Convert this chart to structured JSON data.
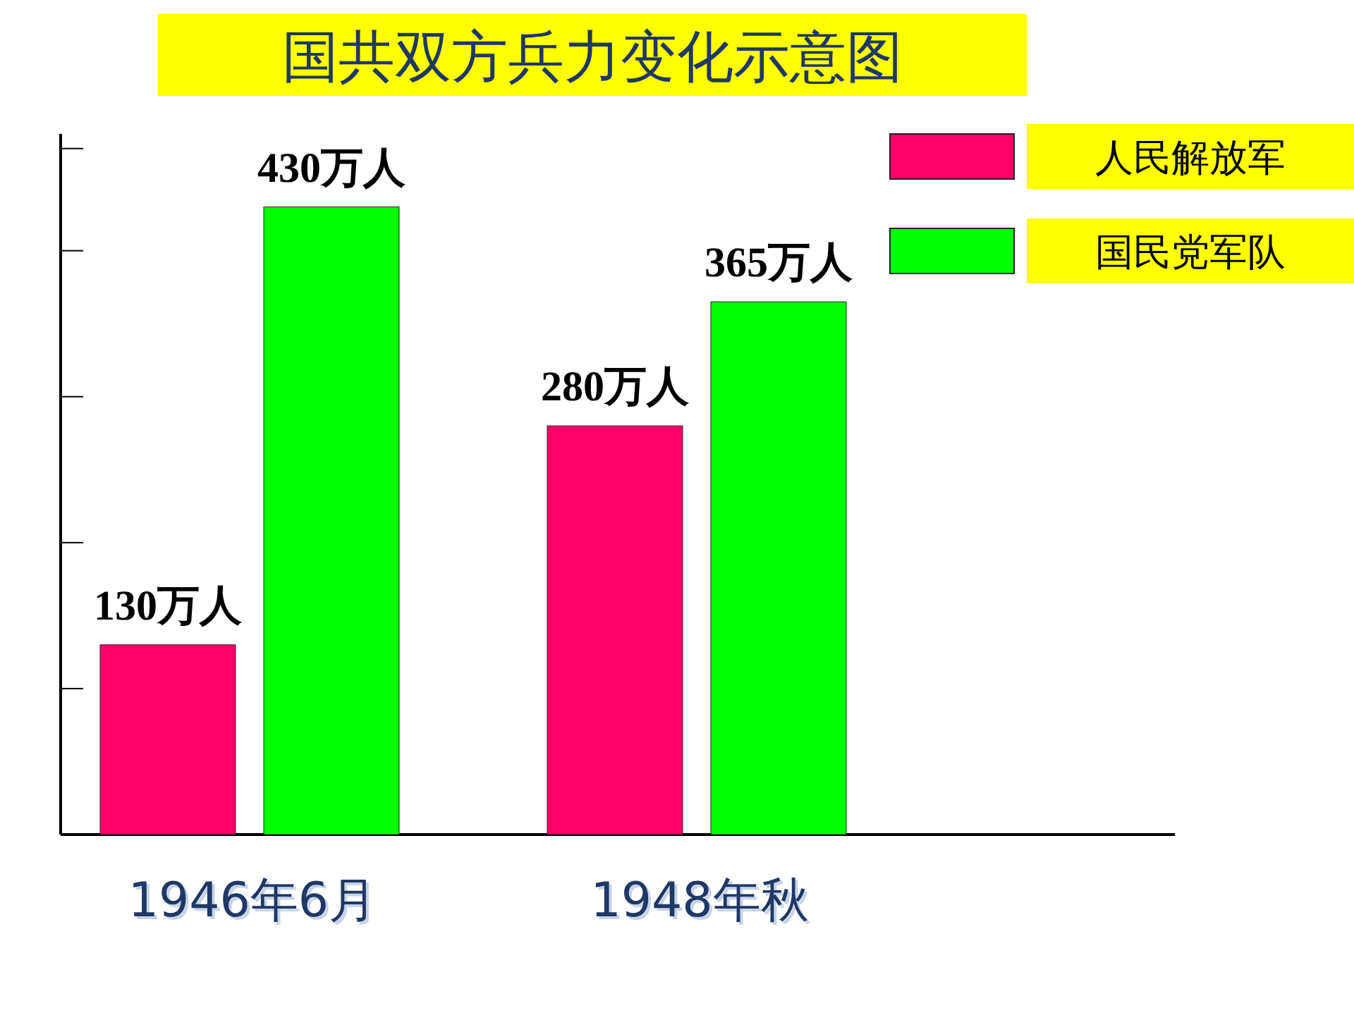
{
  "chart_data": {
    "type": "bar",
    "title": "国共双方兵力变化示意图",
    "categories": [
      "1946年6月",
      "1948年秋"
    ],
    "series": [
      {
        "name": "人民解放军",
        "color": "#ff0066",
        "values": [
          130,
          280
        ],
        "value_labels": [
          "130万人",
          "280万人"
        ]
      },
      {
        "name": "国民党军队",
        "color": "#00ff00",
        "values": [
          430,
          365
        ],
        "value_labels": [
          "430万人",
          "365万人"
        ]
      }
    ],
    "ylim": [
      0,
      480
    ],
    "yticks": [
      {
        "value": 100,
        "label": null
      },
      {
        "value": 200,
        "label": null
      },
      {
        "value": 300,
        "label": null
      },
      {
        "value": 400,
        "label": null
      },
      {
        "value": 470,
        "label": null
      }
    ],
    "tick_labels": "x",
    "grid": false,
    "legend": "top right"
  }
}
